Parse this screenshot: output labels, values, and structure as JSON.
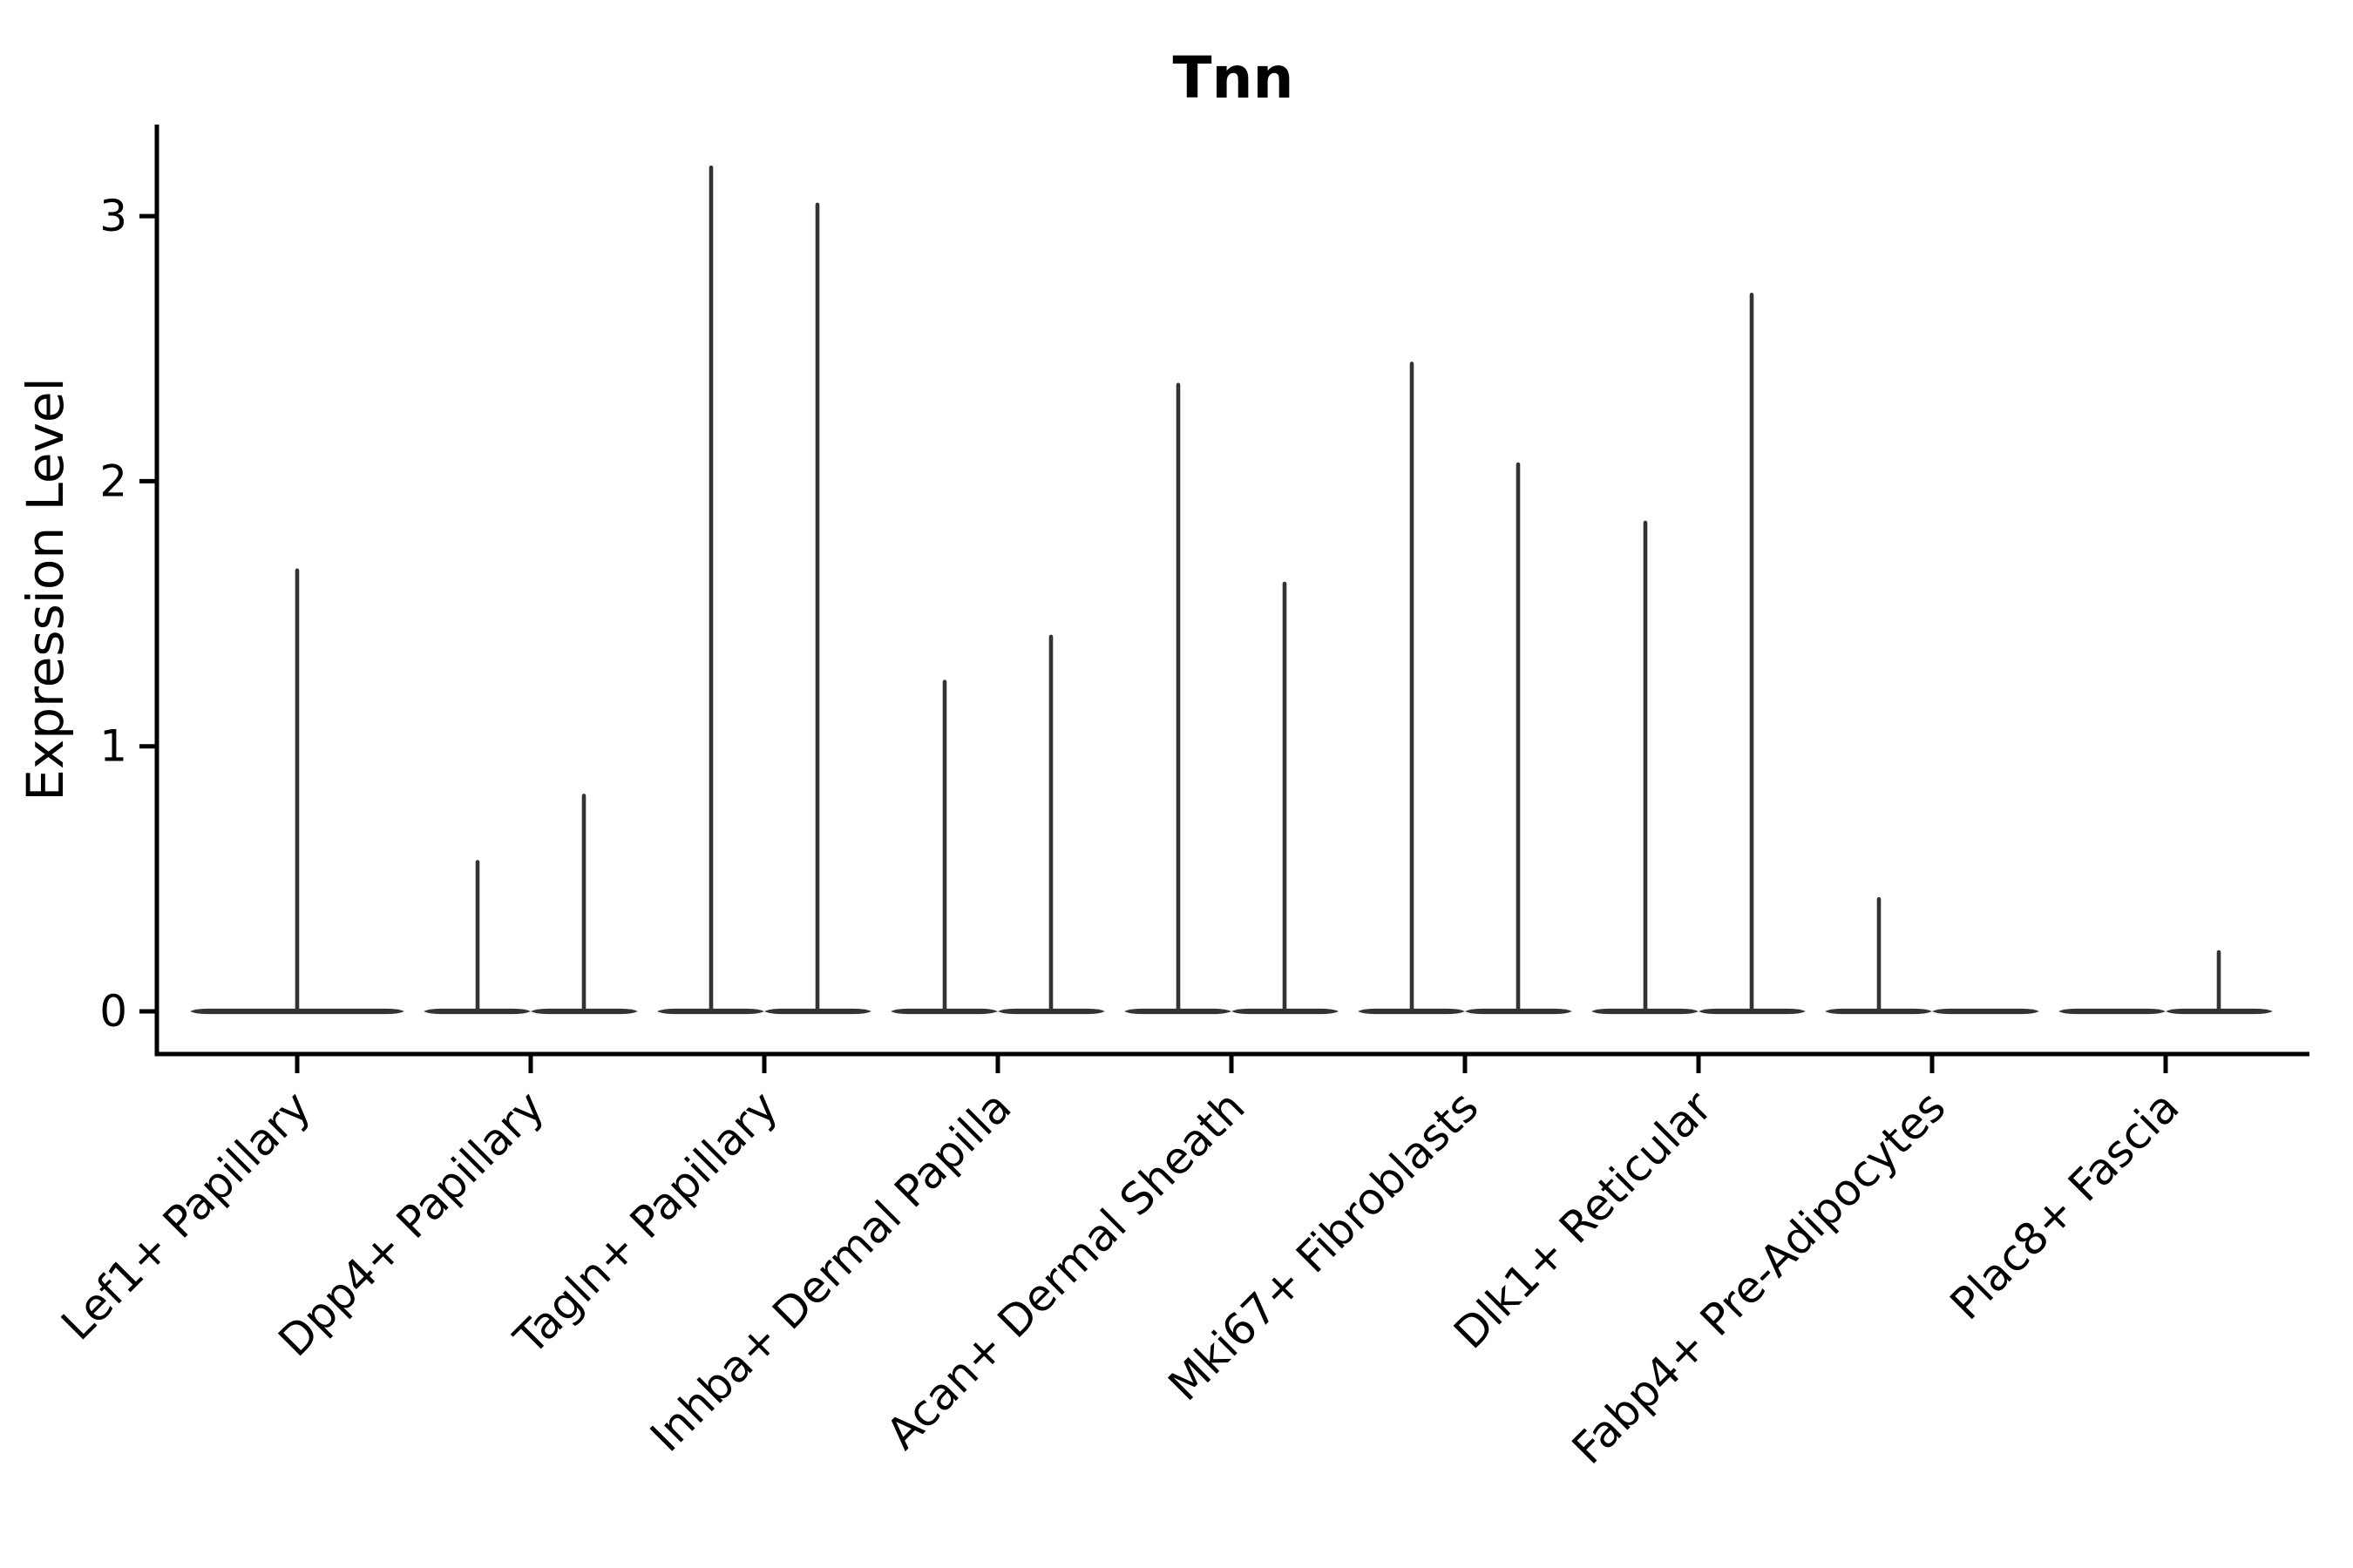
{
  "chart_data": {
    "type": "violin",
    "title": "Tnn",
    "xlabel": "",
    "ylabel": "Expression Level",
    "yticks": [
      0,
      1,
      2,
      3
    ],
    "ytick_labels": [
      "0",
      "1",
      "2",
      "3"
    ],
    "ylim": [
      -0.16,
      3.35
    ],
    "grid": false,
    "legend": "none",
    "x_tick_rotation_deg": 45,
    "style": {
      "violin_color": "#333333",
      "axis_color": "#000000",
      "background_color": "#ffffff"
    },
    "categories": [
      {
        "label": "Lef1+ Papillary",
        "violins": [
          {
            "group": "all",
            "max": 1.67
          }
        ]
      },
      {
        "label": "Dpp4+ Papillary",
        "violins": [
          {
            "group": "left",
            "max": 0.57
          },
          {
            "group": "right",
            "max": 0.82
          }
        ]
      },
      {
        "label": "Tagln+ Papillary",
        "violins": [
          {
            "group": "left",
            "max": 3.19
          },
          {
            "group": "right",
            "max": 3.05
          }
        ]
      },
      {
        "label": "Inhba+ Dermal Papilla",
        "violins": [
          {
            "group": "left",
            "max": 1.25
          },
          {
            "group": "right",
            "max": 1.42
          }
        ]
      },
      {
        "label": "Acan+ Dermal Sheath",
        "violins": [
          {
            "group": "left",
            "max": 2.37
          },
          {
            "group": "right",
            "max": 1.62
          }
        ]
      },
      {
        "label": "Mki67+ Fibroblasts",
        "violins": [
          {
            "group": "left",
            "max": 2.45
          },
          {
            "group": "right",
            "max": 2.07
          }
        ]
      },
      {
        "label": "Dlk1+ Reticular",
        "violins": [
          {
            "group": "left",
            "max": 1.85
          },
          {
            "group": "right",
            "max": 2.71
          }
        ]
      },
      {
        "label": "Fabp4+ Pre-Adipocytes",
        "violins": [
          {
            "group": "left",
            "max": 0.43
          },
          {
            "group": "right",
            "max": 0.0
          }
        ]
      },
      {
        "label": "Plac8+ Fascia",
        "violins": [
          {
            "group": "left",
            "max": 0.0
          },
          {
            "group": "right",
            "max": 0.23
          }
        ]
      }
    ]
  }
}
